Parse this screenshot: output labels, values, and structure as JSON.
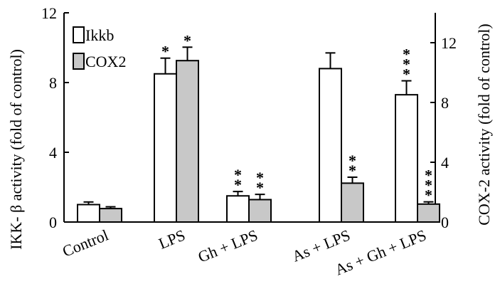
{
  "chart_data": {
    "type": "bar",
    "categories": [
      "Control",
      "LPS",
      "Gh + LPS",
      "As + LPS",
      "As + Gh + LPS"
    ],
    "series": [
      {
        "name": "Ikkb",
        "axis": "left",
        "values": [
          1.0,
          8.5,
          1.5,
          8.8,
          7.3
        ],
        "errors": [
          0.15,
          0.9,
          0.25,
          0.9,
          0.8
        ],
        "annotations": [
          "",
          "*",
          "**",
          "",
          "***"
        ],
        "color": "#ffffff"
      },
      {
        "name": "COX2",
        "axis": "right",
        "values": [
          0.9,
          10.8,
          1.5,
          2.6,
          1.2
        ],
        "errors": [
          0.12,
          0.9,
          0.35,
          0.4,
          0.15
        ],
        "annotations": [
          "",
          "*",
          "**",
          "**",
          "***"
        ],
        "color": "#c8c8c8"
      }
    ],
    "y_left": {
      "label": "IKK- β activity (fold of control)",
      "ticks": [
        "0",
        "4",
        "8",
        "12"
      ],
      "ylim": [
        0,
        12
      ]
    },
    "y_right": {
      "label": "COX-2 activity (fold of control)",
      "ticks": [
        "0",
        "4",
        "8",
        "12"
      ],
      "ylim": [
        0,
        14
      ]
    },
    "xlabel": "",
    "legend_position": "top-left",
    "grid": false
  }
}
